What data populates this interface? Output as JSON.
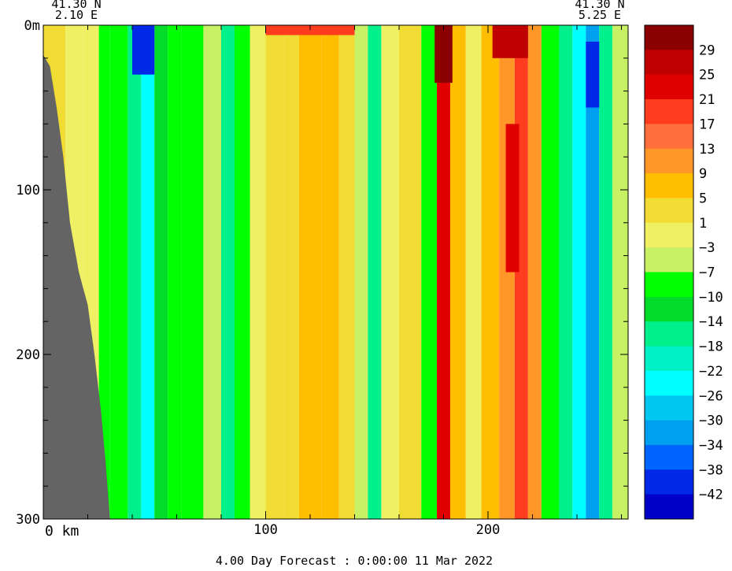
{
  "chart_data": {
    "type": "heatmap",
    "title": "",
    "xlabel": "",
    "ylabel": "",
    "corner_labels": {
      "left_lat": "41.30 N",
      "left_lon": "2.10 E",
      "right_lat": "41.30 N",
      "right_lon": "5.25 E"
    },
    "x_unit_label": "0 km",
    "y_unit_label": "0m",
    "xlim": [
      0,
      263
    ],
    "ylim": [
      0,
      300
    ],
    "y_inverted": true,
    "x_ticks": [
      {
        "value": 0,
        "label": ""
      },
      {
        "value": 100,
        "label": "100"
      },
      {
        "value": 200,
        "label": "200"
      }
    ],
    "y_ticks": [
      {
        "value": 0,
        "label": "0m"
      },
      {
        "value": 100,
        "label": "100"
      },
      {
        "value": 200,
        "label": "200"
      },
      {
        "value": 300,
        "label": "300"
      }
    ],
    "colorbar": {
      "labels": [
        "29",
        "25",
        "21",
        "17",
        "13",
        "9",
        "5",
        "1",
        "−3",
        "−7",
        "−10",
        "−14",
        "−18",
        "−22",
        "−26",
        "−30",
        "−34",
        "−38",
        "−42"
      ],
      "colors": [
        "#8b0000",
        "#c00000",
        "#e00000",
        "#ff3c1e",
        "#ff6e3c",
        "#ff9628",
        "#ffbe00",
        "#f0dc32",
        "#f0f064",
        "#c8f064",
        "#00ff00",
        "#00dc28",
        "#00f08c",
        "#00f0c8",
        "#00ffff",
        "#00c8f0",
        "#00a0f0",
        "#0064ff",
        "#0028e6",
        "#0000c8"
      ]
    },
    "land_mask": {
      "color": "#646464",
      "description_depths": [
        0,
        300
      ],
      "description_x": [
        0,
        30
      ]
    },
    "columns": [
      {
        "x0": 0,
        "x1": 10,
        "value": 0
      },
      {
        "x0": 10,
        "x1": 18,
        "value": -2
      },
      {
        "x0": 18,
        "x1": 25,
        "value": -5
      },
      {
        "x0": 25,
        "x1": 30,
        "value": -10
      },
      {
        "x0": 30,
        "x1": 38,
        "value": -12
      },
      {
        "x0": 38,
        "x1": 44,
        "value": -18
      },
      {
        "x0": 44,
        "x1": 50,
        "value": -28
      },
      {
        "x0": 50,
        "x1": 56,
        "value": -15
      },
      {
        "x0": 56,
        "x1": 62,
        "value": -10
      },
      {
        "x0": 62,
        "x1": 72,
        "value": -12
      },
      {
        "x0": 72,
        "x1": 80,
        "value": -6
      },
      {
        "x0": 80,
        "x1": 86,
        "value": -20
      },
      {
        "x0": 86,
        "x1": 93,
        "value": -10
      },
      {
        "x0": 93,
        "x1": 100,
        "value": -2
      },
      {
        "x0": 100,
        "x1": 108,
        "value": 2
      },
      {
        "x0": 108,
        "x1": 115,
        "value": -1
      },
      {
        "x0": 115,
        "x1": 125,
        "value": 5
      },
      {
        "x0": 125,
        "x1": 133,
        "value": 6
      },
      {
        "x0": 133,
        "x1": 140,
        "value": 2
      },
      {
        "x0": 140,
        "x1": 146,
        "value": -8
      },
      {
        "x0": 146,
        "x1": 152,
        "value": -17
      },
      {
        "x0": 152,
        "x1": 160,
        "value": -5
      },
      {
        "x0": 160,
        "x1": 170,
        "value": 1
      },
      {
        "x0": 170,
        "x1": 177,
        "value": -10
      },
      {
        "x0": 177,
        "x1": 183,
        "value": 20
      },
      {
        "x0": 183,
        "x1": 190,
        "value": 6
      },
      {
        "x0": 190,
        "x1": 197,
        "value": -4
      },
      {
        "x0": 197,
        "x1": 205,
        "value": 3
      },
      {
        "x0": 205,
        "x1": 212,
        "value": 10
      },
      {
        "x0": 212,
        "x1": 218,
        "value": 18
      },
      {
        "x0": 218,
        "x1": 224,
        "value": 8
      },
      {
        "x0": 224,
        "x1": 232,
        "value": -10
      },
      {
        "x0": 232,
        "x1": 238,
        "value": -18
      },
      {
        "x0": 238,
        "x1": 244,
        "value": -26
      },
      {
        "x0": 244,
        "x1": 250,
        "value": -36
      },
      {
        "x0": 250,
        "x1": 256,
        "value": -20
      },
      {
        "x0": 256,
        "x1": 263,
        "value": -6
      }
    ],
    "surface_spots": [
      {
        "x0": 40,
        "x1": 50,
        "d0": 0,
        "d1": 30,
        "value": -42
      },
      {
        "x0": 100,
        "x1": 140,
        "d0": 0,
        "d1": 6,
        "value": 17
      },
      {
        "x0": 176,
        "x1": 184,
        "d0": 0,
        "d1": 35,
        "value": 29
      },
      {
        "x0": 202,
        "x1": 218,
        "d0": 0,
        "d1": 20,
        "value": 25
      },
      {
        "x0": 208,
        "x1": 214,
        "d0": 60,
        "d1": 150,
        "value": 21
      },
      {
        "x0": 244,
        "x1": 250,
        "d0": 10,
        "d1": 50,
        "value": -42
      }
    ]
  },
  "footer": {
    "forecast_text": "4.00 Day Forecast :  0:00:00  11 Mar 2022"
  }
}
